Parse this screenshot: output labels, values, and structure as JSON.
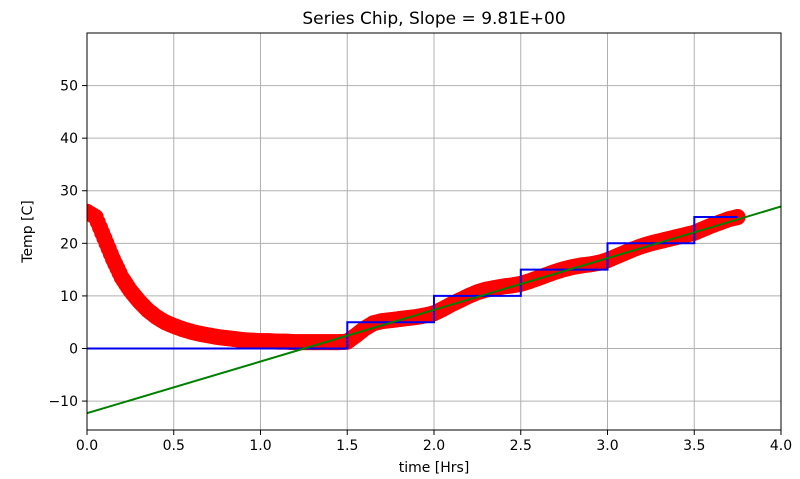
{
  "chart_data": {
    "type": "scatter",
    "title": "Series Chip, Slope = 9.81E+00",
    "xlabel": "time [Hrs]",
    "ylabel": "Temp [C]",
    "xlim": [
      0.0,
      4.0
    ],
    "ylim": [
      -15.5,
      60
    ],
    "xticks": [
      0.0,
      0.5,
      1.0,
      1.5,
      2.0,
      2.5,
      3.0,
      3.5,
      4.0
    ],
    "xtick_labels": [
      "0.0",
      "0.5",
      "1.0",
      "1.5",
      "2.0",
      "2.5",
      "3.0",
      "3.5",
      "4.0"
    ],
    "yticks": [
      -10,
      0,
      10,
      20,
      30,
      40,
      50
    ],
    "ytick_labels": [
      "−10",
      "0",
      "10",
      "20",
      "30",
      "40",
      "50"
    ],
    "grid": true,
    "series": [
      {
        "kind": "scatter",
        "color": "#ff0000",
        "x": [
          0.0,
          0.05,
          0.1,
          0.15,
          0.2,
          0.25,
          0.3,
          0.35,
          0.4,
          0.45,
          0.5,
          0.55,
          0.6,
          0.65,
          0.7,
          0.75,
          0.8,
          0.85,
          0.9,
          0.95,
          1.0,
          1.05,
          1.1,
          1.15,
          1.2,
          1.25,
          1.3,
          1.35,
          1.4,
          1.45,
          1.5,
          1.55,
          1.6,
          1.65,
          1.7,
          1.75,
          1.8,
          1.85,
          1.9,
          1.95,
          2.0,
          2.05,
          2.1,
          2.15,
          2.2,
          2.25,
          2.3,
          2.35,
          2.4,
          2.45,
          2.5,
          2.55,
          2.6,
          2.65,
          2.7,
          2.75,
          2.8,
          2.85,
          2.9,
          2.95,
          3.0,
          3.05,
          3.1,
          3.15,
          3.2,
          3.25,
          3.3,
          3.35,
          3.4,
          3.45,
          3.5,
          3.55,
          3.6,
          3.65,
          3.7,
          3.75
        ],
        "y": [
          26.0,
          25.0,
          21.0,
          17.0,
          13.5,
          11.0,
          9.0,
          7.3,
          6.0,
          5.0,
          4.3,
          3.7,
          3.2,
          2.8,
          2.5,
          2.2,
          2.0,
          1.8,
          1.6,
          1.5,
          1.4,
          1.4,
          1.3,
          1.3,
          1.2,
          1.2,
          1.2,
          1.2,
          1.2,
          1.2,
          1.3,
          2.5,
          3.8,
          4.8,
          5.2,
          5.4,
          5.6,
          5.8,
          6.0,
          6.3,
          6.7,
          7.5,
          8.4,
          9.2,
          10.0,
          10.7,
          11.2,
          11.5,
          11.8,
          12.0,
          12.3,
          12.8,
          13.4,
          14.0,
          14.6,
          15.1,
          15.5,
          15.8,
          16.0,
          16.3,
          16.8,
          17.5,
          18.2,
          18.9,
          19.5,
          20.0,
          20.4,
          20.8,
          21.2,
          21.6,
          22.0,
          22.7,
          23.4,
          24.0,
          24.6,
          25.0
        ]
      },
      {
        "kind": "step",
        "color": "#0000ee",
        "x": [
          0.0,
          1.5,
          1.5,
          2.0,
          2.0,
          2.5,
          2.5,
          3.0,
          3.0,
          3.5,
          3.5,
          3.75
        ],
        "y": [
          0,
          0,
          5,
          5,
          10,
          10,
          15,
          15,
          20,
          20,
          25,
          25
        ]
      },
      {
        "kind": "line",
        "color": "#008000",
        "x": [
          0.0,
          4.0
        ],
        "y": [
          -12.3,
          27.0
        ]
      }
    ]
  }
}
